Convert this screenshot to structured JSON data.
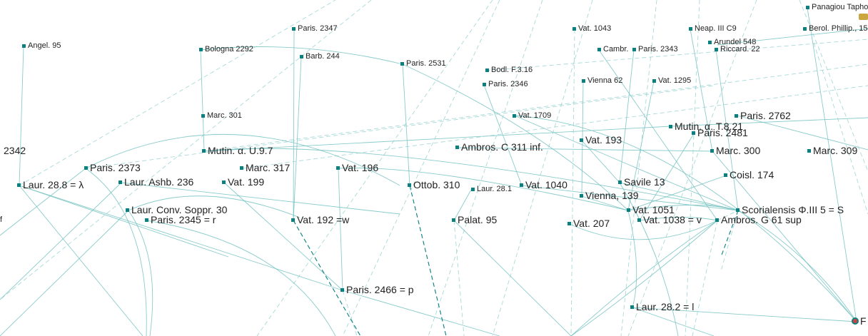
{
  "colors": {
    "edge": "#76c2c2",
    "edge_dashed": "#8ccccc",
    "node": "#0c7f7f",
    "text": "#222222"
  },
  "nodes": [
    {
      "id": "panagiou",
      "label": "Panagiou Tapho"
    },
    {
      "id": "vat1043",
      "label": "Vat. 1043"
    },
    {
      "id": "neap",
      "label": "Neap. III C9"
    },
    {
      "id": "berol",
      "label": "Berol. Phillip., 15"
    },
    {
      "id": "paris2347",
      "label": "Paris. 2347"
    },
    {
      "id": "arundel",
      "label": "Arundel 548"
    },
    {
      "id": "angel",
      "label": "Angel. 95"
    },
    {
      "id": "bologna",
      "label": "Bologna 2292"
    },
    {
      "id": "cambr",
      "label": "Cambr."
    },
    {
      "id": "paris2343",
      "label": "Paris. 2343"
    },
    {
      "id": "riccard",
      "label": "Riccard. 22"
    },
    {
      "id": "barb",
      "label": "Barb. 244"
    },
    {
      "id": "paris2531",
      "label": "Paris. 2531"
    },
    {
      "id": "bodl",
      "label": "Bodl. F.3.16"
    },
    {
      "id": "vienna62",
      "label": "Vienna 62"
    },
    {
      "id": "vat1295",
      "label": "Vat. 1295"
    },
    {
      "id": "paris2346",
      "label": "Paris. 2346"
    },
    {
      "id": "marc301",
      "label": "Marc. 301"
    },
    {
      "id": "vat1709",
      "label": "Vat. 1709"
    },
    {
      "id": "paris2762",
      "label": "Paris. 2762"
    },
    {
      "id": "mutinT",
      "label": "Mutin. α. T.8.21"
    },
    {
      "id": "paris2481",
      "label": "Paris. 2481"
    },
    {
      "id": "vat193",
      "label": "Vat. 193"
    },
    {
      "id": "ambrosC",
      "label": "Ambros. C 311 inf."
    },
    {
      "id": "n2342",
      "label": "2342"
    },
    {
      "id": "mutinU",
      "label": "Mutin. α. U.9.7"
    },
    {
      "id": "marc300",
      "label": "Marc. 300"
    },
    {
      "id": "marc309",
      "label": "Marc. 309"
    },
    {
      "id": "paris2373",
      "label": "Paris. 2373"
    },
    {
      "id": "marc317",
      "label": "Marc. 317"
    },
    {
      "id": "vat196",
      "label": "Vat. 196"
    },
    {
      "id": "coisl",
      "label": "Coisl. 174"
    },
    {
      "id": "laur288",
      "label": "Laur. 28.8 = λ"
    },
    {
      "id": "laurAshb",
      "label": "Laur. Ashb. 236"
    },
    {
      "id": "vat199",
      "label": "Vat. 199"
    },
    {
      "id": "ottob",
      "label": "Ottob. 310"
    },
    {
      "id": "laur281",
      "label": "Laur. 28.1"
    },
    {
      "id": "vat1040",
      "label": "Vat. 1040"
    },
    {
      "id": "savile",
      "label": "Savile 13"
    },
    {
      "id": "vienna139",
      "label": "Vienna, 139"
    },
    {
      "id": "laurConv",
      "label": "Laur. Conv. Soppr. 30"
    },
    {
      "id": "vat1051",
      "label": "Vat. 1051"
    },
    {
      "id": "scorial",
      "label": "Scorialensis Φ.III 5 = S"
    },
    {
      "id": "f",
      "label": "f"
    },
    {
      "id": "paris2345",
      "label": "Paris. 2345 = r"
    },
    {
      "id": "vat192",
      "label": "Vat. 192 =w"
    },
    {
      "id": "palat",
      "label": "Palat. 95"
    },
    {
      "id": "vat207",
      "label": "Vat. 207"
    },
    {
      "id": "vat1038",
      "label": "Vat. 1038 = v"
    },
    {
      "id": "ambrosG",
      "label": "Ambros. G 61 sup"
    },
    {
      "id": "paris2466",
      "label": "Paris. 2466 = p"
    },
    {
      "id": "laur282",
      "label": "Laur. 28.2 = l"
    },
    {
      "id": "root",
      "label": "F"
    }
  ]
}
